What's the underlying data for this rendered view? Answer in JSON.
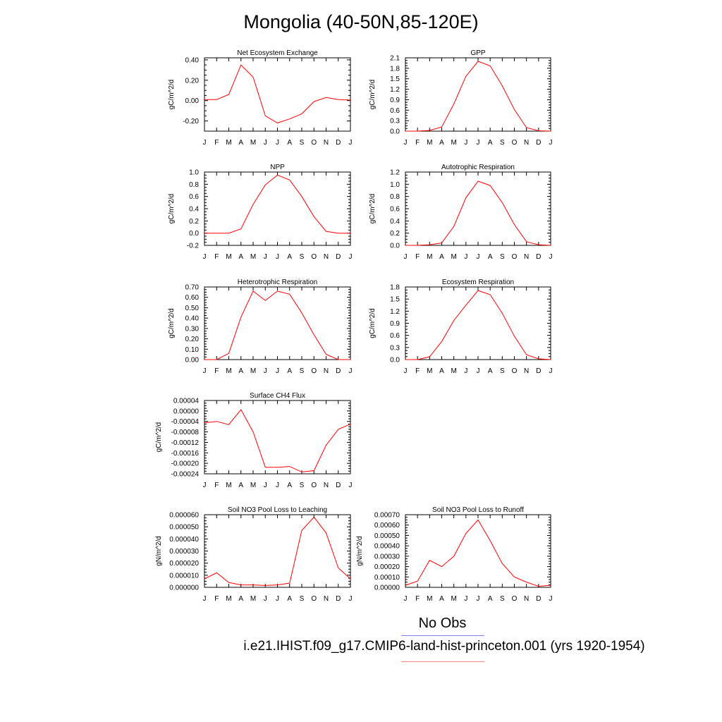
{
  "title": "Mongolia (40-50N,85-120E)",
  "legend": {
    "obs_label": "No Obs",
    "case_label": "i.e21.IHIST.f09_g17.CMIP6-land-hist-princeton.001 (yrs 1920-1954)",
    "obs_color": "#7f7ff0",
    "case_color": "#ff0000"
  },
  "chart_data": [
    {
      "type": "line",
      "title": "Net Ecosystem Exchange",
      "ylabel": "gC/m^2/d",
      "x": [
        "J",
        "F",
        "M",
        "A",
        "M",
        "J",
        "J",
        "A",
        "S",
        "O",
        "N",
        "D",
        "J"
      ],
      "ylim": [
        -0.3,
        0.42
      ],
      "yticks": [
        "0.40",
        "0.20",
        "0.00",
        "-0.20"
      ],
      "ytick_values": [
        0.4,
        0.2,
        0.0,
        -0.2
      ],
      "series": [
        {
          "values": [
            0.01,
            0.01,
            0.06,
            0.35,
            0.23,
            -0.15,
            -0.22,
            -0.18,
            -0.13,
            -0.01,
            0.03,
            0.01,
            0.005
          ]
        }
      ]
    },
    {
      "type": "line",
      "title": "GPP",
      "ylabel": "gC/m^2/d",
      "x": [
        "J",
        "F",
        "M",
        "A",
        "M",
        "J",
        "J",
        "A",
        "S",
        "O",
        "N",
        "D",
        "J"
      ],
      "ylim": [
        0,
        2.1
      ],
      "yticks": [
        "2.1",
        "1.8",
        "1.5",
        "1.2",
        "0.9",
        "0.6",
        "0.3",
        "0.0"
      ],
      "ytick_values": [
        2.1,
        1.8,
        1.5,
        1.2,
        0.9,
        0.6,
        0.3,
        0.0
      ],
      "series": [
        {
          "values": [
            0.0,
            0.0,
            0.02,
            0.12,
            0.78,
            1.57,
            2.0,
            1.87,
            1.3,
            0.62,
            0.1,
            0.01,
            0.0
          ]
        }
      ]
    },
    {
      "type": "line",
      "title": "NPP",
      "ylabel": "gC/m^2/d",
      "x": [
        "J",
        "F",
        "M",
        "A",
        "M",
        "J",
        "J",
        "A",
        "S",
        "O",
        "N",
        "D",
        "J"
      ],
      "ylim": [
        -0.2,
        1.0
      ],
      "yticks": [
        "1.0",
        "0.8",
        "0.6",
        "0.4",
        "0.2",
        "0.0",
        "-0.2"
      ],
      "ytick_values": [
        1.0,
        0.8,
        0.6,
        0.4,
        0.2,
        0.0,
        -0.2
      ],
      "series": [
        {
          "values": [
            0.0,
            0.0,
            0.0,
            0.07,
            0.47,
            0.79,
            0.95,
            0.87,
            0.6,
            0.27,
            0.03,
            0.0,
            0.0
          ]
        }
      ]
    },
    {
      "type": "line",
      "title": "Autotrophic Respiration",
      "ylabel": "gC/m^2/d",
      "x": [
        "J",
        "F",
        "M",
        "A",
        "M",
        "J",
        "J",
        "A",
        "S",
        "O",
        "N",
        "D",
        "J"
      ],
      "ylim": [
        0,
        1.2
      ],
      "yticks": [
        "1.2",
        "1.0",
        "0.8",
        "0.6",
        "0.4",
        "0.2",
        "0.0"
      ],
      "ytick_values": [
        1.2,
        1.0,
        0.8,
        0.6,
        0.4,
        0.2,
        0.0
      ],
      "series": [
        {
          "values": [
            0.0,
            0.0,
            0.01,
            0.04,
            0.31,
            0.78,
            1.05,
            0.98,
            0.7,
            0.34,
            0.06,
            0.01,
            0.0
          ]
        }
      ]
    },
    {
      "type": "line",
      "title": "Heterotrophic Respiration",
      "ylabel": "gC/m^2/d",
      "x": [
        "J",
        "F",
        "M",
        "A",
        "M",
        "J",
        "J",
        "A",
        "S",
        "O",
        "N",
        "D",
        "J"
      ],
      "ylim": [
        0,
        0.7
      ],
      "yticks": [
        "0.70",
        "0.60",
        "0.50",
        "0.40",
        "0.30",
        "0.20",
        "0.10",
        "0.00"
      ],
      "ytick_values": [
        0.7,
        0.6,
        0.5,
        0.4,
        0.3,
        0.2,
        0.1,
        0.0
      ],
      "series": [
        {
          "values": [
            0.0,
            0.0,
            0.06,
            0.41,
            0.66,
            0.57,
            0.66,
            0.63,
            0.45,
            0.24,
            0.05,
            0.0,
            0.0
          ]
        }
      ]
    },
    {
      "type": "line",
      "title": "Ecosystem Respiration",
      "ylabel": "gC/m^2/d",
      "x": [
        "J",
        "F",
        "M",
        "A",
        "M",
        "J",
        "J",
        "A",
        "S",
        "O",
        "N",
        "D",
        "J"
      ],
      "ylim": [
        0,
        1.8
      ],
      "yticks": [
        "1.8",
        "1.5",
        "1.2",
        "0.9",
        "0.6",
        "0.3",
        "0.0"
      ],
      "ytick_values": [
        1.8,
        1.5,
        1.2,
        0.9,
        0.6,
        0.3,
        0.0
      ],
      "series": [
        {
          "values": [
            0.0,
            0.0,
            0.07,
            0.45,
            0.97,
            1.35,
            1.71,
            1.61,
            1.15,
            0.58,
            0.12,
            0.02,
            0.0
          ]
        }
      ]
    },
    {
      "type": "line",
      "title": "Surface CH4 Flux",
      "ylabel": "gC/m^2/d",
      "x": [
        "J",
        "F",
        "M",
        "A",
        "M",
        "J",
        "J",
        "A",
        "S",
        "O",
        "N",
        "D",
        "J"
      ],
      "ylim": [
        -0.00024,
        4e-05
      ],
      "yticks": [
        "0.00004",
        "0.00000",
        "-0.00004",
        "-0.00008",
        "-0.00012",
        "-0.00016",
        "-0.00020",
        "-0.00024"
      ],
      "ytick_values": [
        4e-05,
        0.0,
        -4e-05,
        -8e-05,
        -0.00012,
        -0.00016,
        -0.0002,
        -0.00024
      ],
      "series": [
        {
          "values": [
            -4.5e-05,
            -4e-05,
            -5.2e-05,
            5e-06,
            -8e-05,
            -0.000215,
            -0.000215,
            -0.000212,
            -0.000233,
            -0.000228,
            -0.000131,
            -7e-05,
            -5e-05
          ]
        }
      ]
    },
    {
      "type": "line",
      "title": "Soil NO3 Pool Loss to Leaching",
      "ylabel": "gN/m^2/d",
      "x": [
        "J",
        "F",
        "M",
        "A",
        "M",
        "J",
        "J",
        "A",
        "S",
        "O",
        "N",
        "D",
        "J"
      ],
      "ylim": [
        0,
        6e-05
      ],
      "yticks": [
        "0.000060",
        "0.000050",
        "0.000040",
        "0.000030",
        "0.000020",
        "0.000010",
        "0.000000"
      ],
      "ytick_values": [
        6e-05,
        5e-05,
        4e-05,
        3e-05,
        2e-05,
        1e-05,
        0.0
      ],
      "series": [
        {
          "values": [
            7e-06,
            1.2e-05,
            4e-06,
            2e-06,
            2e-06,
            1.5e-06,
            2e-06,
            3.5e-06,
            4.7e-05,
            5.8e-05,
            4.5e-05,
            1.6e-05,
            7e-06
          ]
        }
      ]
    },
    {
      "type": "line",
      "title": "Soil NO3 Pool Loss to Runoff",
      "ylabel": "gN/m^2/d",
      "x": [
        "J",
        "F",
        "M",
        "A",
        "M",
        "J",
        "J",
        "A",
        "S",
        "O",
        "N",
        "D",
        "J"
      ],
      "ylim": [
        0,
        0.0007
      ],
      "yticks": [
        "0.00070",
        "0.00060",
        "0.00050",
        "0.00040",
        "0.00030",
        "0.00020",
        "0.00010",
        "0.00000"
      ],
      "ytick_values": [
        0.0007,
        0.0006,
        0.0005,
        0.0004,
        0.0003,
        0.0002,
        0.0001,
        0.0
      ],
      "series": [
        {
          "values": [
            2e-05,
            6e-05,
            0.00026,
            0.0002,
            0.0003,
            0.00052,
            0.00065,
            0.00045,
            0.00023,
            0.0001,
            5e-05,
            1e-05,
            2e-05
          ]
        }
      ]
    }
  ]
}
